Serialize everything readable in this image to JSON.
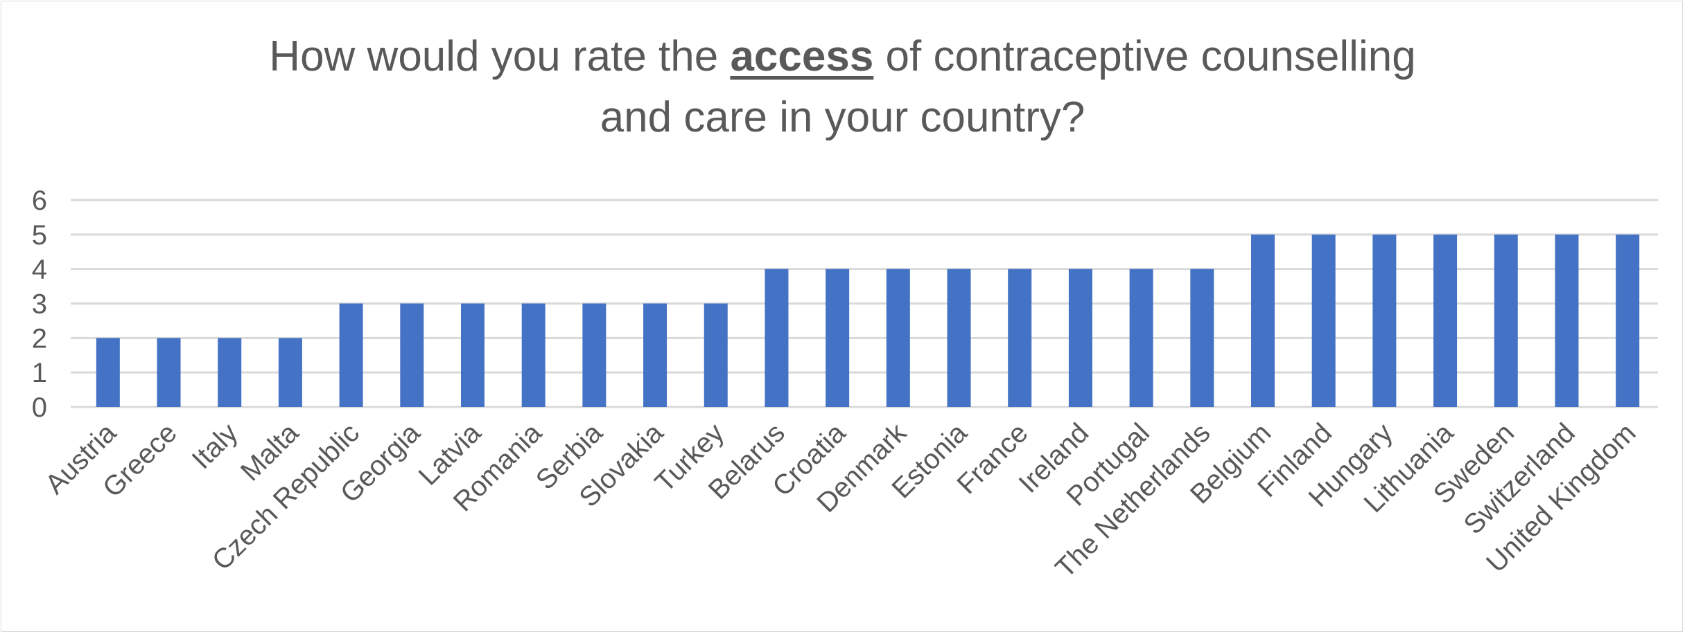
{
  "chart_data": {
    "type": "bar",
    "title_before": "How would you rate the ",
    "title_emph": "access",
    "title_after": " of contraceptive counselling",
    "title_line2": "and care in your country?",
    "categories": [
      "Austria",
      "Greece",
      "Italy",
      "Malta",
      "Czech Republic",
      "Georgia",
      "Latvia",
      "Romania",
      "Serbia",
      "Slovakia",
      "Turkey",
      "Belarus",
      "Croatia",
      "Denmark",
      "Estonia",
      "France",
      "Ireland",
      "Portugal",
      "The Netherlands",
      "Belgium",
      "Finland",
      "Hungary",
      "Lithuania",
      "Sweden",
      "Switzerland",
      "United Kingdom"
    ],
    "values": [
      2,
      2,
      2,
      2,
      3,
      3,
      3,
      3,
      3,
      3,
      3,
      4,
      4,
      4,
      4,
      4,
      4,
      4,
      4,
      5,
      5,
      5,
      5,
      5,
      5,
      5
    ],
    "ylim": [
      0,
      6
    ],
    "yticks": [
      0,
      1,
      2,
      3,
      4,
      5,
      6
    ],
    "grid": true,
    "legend": "none",
    "bar_color": "#4472c4",
    "grid_color": "#d9d9d9",
    "text_color": "#595959"
  }
}
